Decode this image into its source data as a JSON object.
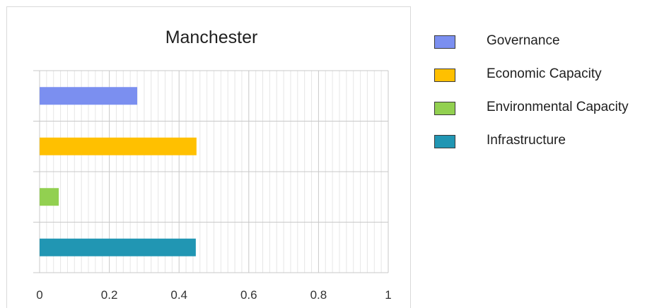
{
  "chart_data": {
    "type": "bar",
    "orientation": "horizontal",
    "title": "Manchester",
    "categories": [
      "Governance",
      "Economic Capacity",
      "Environmental Capacity",
      "Infrastructure"
    ],
    "values": [
      0.28,
      0.45,
      0.055,
      0.448
    ],
    "colors": [
      "#7b8ff0",
      "#ffc000",
      "#92d050",
      "#2196b3"
    ],
    "xlim": [
      0,
      1
    ],
    "xticks": [
      0,
      0.2,
      0.4,
      0.6,
      0.8,
      1
    ],
    "xtick_labels": [
      "0",
      "0.2",
      "0.4",
      "0.6",
      "0.8",
      "1"
    ],
    "xlabel": "",
    "ylabel": "",
    "grid": "major and minor vertical",
    "legend_position": "right"
  }
}
